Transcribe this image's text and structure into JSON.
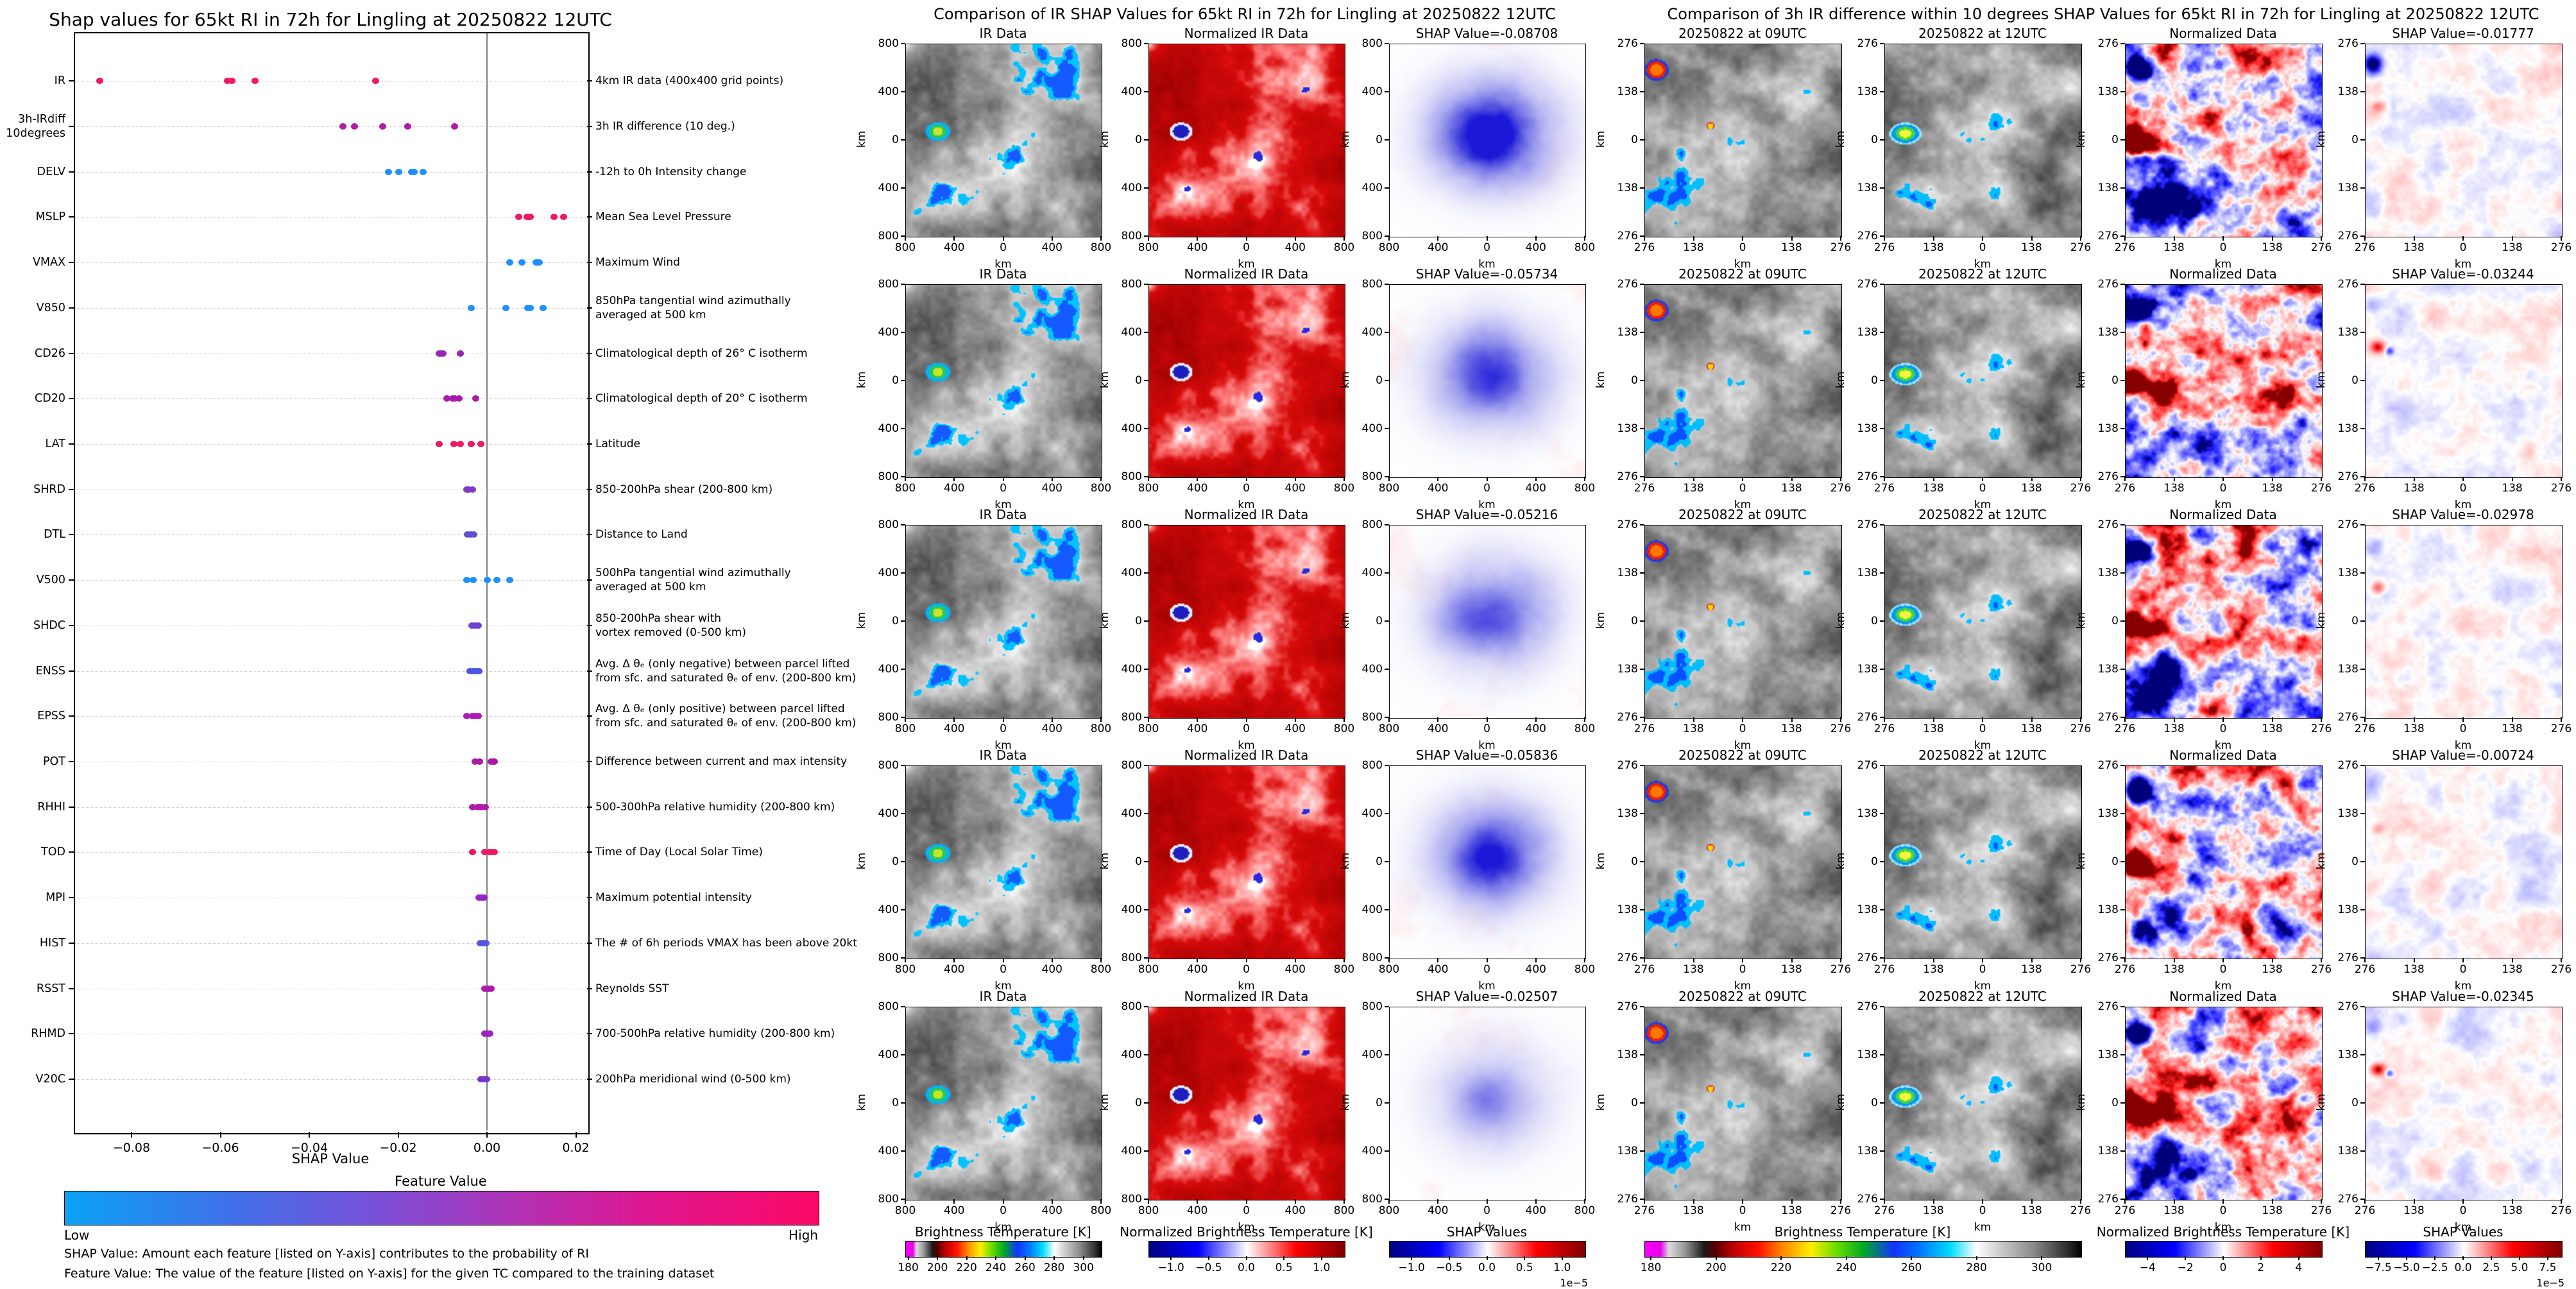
{
  "left_panel": {
    "title": "Shap values for 65kt RI in 72h for Lingling at 20250822 12UTC",
    "xlabel": "SHAP Value",
    "x_ticks": [
      {
        "v": -0.08,
        "label": "−0.08"
      },
      {
        "v": -0.06,
        "label": "−0.06"
      },
      {
        "v": -0.04,
        "label": "−0.04"
      },
      {
        "v": -0.02,
        "label": "−0.02"
      },
      {
        "v": 0.0,
        "label": "0.00"
      },
      {
        "v": 0.02,
        "label": "0.02"
      }
    ],
    "colorbar": {
      "title": "Feature Value",
      "low": "Low",
      "high": "High"
    },
    "footnotes": [
      "SHAP Value: Amount each feature [listed on Y-axis] contributes to the probability of RI",
      "Feature Value: The value of the feature [listed on Y-axis] for the given TC compared to the training dataset"
    ],
    "features": [
      {
        "name": "IR",
        "desc": "4km IR data (400x400 grid points)",
        "color": "#ee1866",
        "dots": [
          -0.08708,
          -0.05836,
          -0.05734,
          -0.05216,
          -0.02507
        ]
      },
      {
        "name": "3h-IRdiff\n10degrees",
        "desc": "3h IR difference (10 deg.)",
        "color": "#b21ba6",
        "dots": [
          -0.03244,
          -0.02978,
          -0.02345,
          -0.01777,
          -0.00724
        ]
      },
      {
        "name": "DELV",
        "desc": "-12h to 0h Intensity change",
        "color": "#1e90ff",
        "dots": [
          -0.0221,
          -0.0198,
          -0.017,
          -0.0164,
          -0.0144
        ]
      },
      {
        "name": "MSLP",
        "desc": "Mean Sea Level Pressure",
        "color": "#ee1866",
        "dots": [
          0.0071,
          0.009,
          0.0093,
          0.0098,
          0.0151,
          0.0172
        ]
      },
      {
        "name": "VMAX",
        "desc": "Maximum Wind",
        "color": "#1e90ff",
        "dots": [
          0.0051,
          0.0078,
          0.011,
          0.0114,
          0.0117
        ]
      },
      {
        "name": "V850",
        "desc": "850hPa tangential wind azimuthally\naveraged at 500 km",
        "color": "#1e90ff",
        "dots": [
          -0.0036,
          0.0043,
          0.0092,
          0.0097,
          0.0127
        ]
      },
      {
        "name": "CD26",
        "desc": "Climatological depth of 26° C isotherm",
        "color": "#9526b6",
        "dots": [
          -0.0107,
          -0.0103,
          -0.0099,
          -0.006
        ]
      },
      {
        "name": "CD20",
        "desc": "Climatological depth of 20° C isotherm",
        "color": "#a81bab",
        "dots": [
          -0.009,
          -0.0077,
          -0.0073,
          -0.0063,
          -0.0025
        ]
      },
      {
        "name": "LAT",
        "desc": "Latitude",
        "color": "#ee1866",
        "dots": [
          -0.0107,
          -0.0075,
          -0.006,
          -0.0035,
          -0.0013
        ]
      },
      {
        "name": "SHRD",
        "desc": "850-200hPa shear (200-800 km)",
        "color": "#7c3cc8",
        "dots": [
          -0.0046,
          -0.0041,
          -0.0033
        ]
      },
      {
        "name": "DTL",
        "desc": "Distance to Land",
        "color": "#5c50d4",
        "dots": [
          -0.0044,
          -0.0037,
          -0.003
        ]
      },
      {
        "name": "V500",
        "desc": "500hPa tangential wind azimuthally\naveraged at 500 km",
        "color": "#1e90ff",
        "dots": [
          -0.0045,
          -0.0031,
          0.0001,
          0.0022,
          0.0051
        ]
      },
      {
        "name": "SHDC",
        "desc": "850-200hPa shear with\nvortex removed (0-500 km)",
        "color": "#6d44d0",
        "dots": [
          -0.0034,
          -0.0027,
          -0.002
        ]
      },
      {
        "name": "ENSS",
        "desc": "Avg. Δ θₑ (only negative) between parcel lifted\nfrom sfc. and saturated θₑ of env. (200-800 km)",
        "color": "#4a55e4",
        "dots": [
          -0.0038,
          -0.0031,
          -0.0025,
          -0.0018
        ]
      },
      {
        "name": "EPSS",
        "desc": "Avg. Δ θₑ (only positive) between parcel lifted\nfrom sfc. and saturated θₑ of env. (200-800 km)",
        "color": "#b01ab6",
        "dots": [
          -0.0045,
          -0.0032,
          -0.0027,
          -0.0019
        ]
      },
      {
        "name": "POT",
        "desc": "Difference between current and max intensity",
        "color": "#ae17a4",
        "dots": [
          -0.0026,
          -0.0017,
          0.001,
          0.0014,
          0.0017
        ]
      },
      {
        "name": "RHHI",
        "desc": "500-300hPa relative humidity (200-800 km)",
        "color": "#b019a8",
        "dots": [
          -0.0032,
          -0.0021,
          -0.0017,
          -0.0012,
          -0.0003
        ]
      },
      {
        "name": "TOD",
        "desc": "Time of Day (Local Solar Time)",
        "color": "#ee1866",
        "dots": [
          -0.0032,
          -0.0005,
          0.0006,
          0.0011,
          0.0016
        ]
      },
      {
        "name": "MPI",
        "desc": "Maximum potential intensity",
        "color": "#9427c6",
        "dots": [
          -0.0018,
          -0.0012,
          -0.0006
        ]
      },
      {
        "name": "HIST",
        "desc": "The # of 6h periods VMAX has been above 20kt",
        "color": "#5556e0",
        "dots": [
          -0.0015,
          -0.0009,
          -0.0002
        ]
      },
      {
        "name": "RSST",
        "desc": "Reynolds SST",
        "color": "#ac18ac",
        "dots": [
          -0.0005,
          0.0002,
          0.0009
        ]
      },
      {
        "name": "RHMD",
        "desc": "700-500hPa relative humidity (200-800 km)",
        "color": "#9a23bc",
        "dots": [
          -0.0005,
          0.0001,
          0.0007
        ]
      },
      {
        "name": "V20C",
        "desc": "200hPa meridional wind (0-500 km)",
        "color": "#7b33d2",
        "dots": [
          -0.0013,
          -0.0007,
          -0.0001
        ]
      }
    ]
  },
  "middle_section": {
    "title": "Comparison of IR SHAP Values for 65kt RI in 72h for Lingling at 20250822 12UTC",
    "col_titles": [
      "IR Data",
      "Normalized IR Data"
    ],
    "shap_prefix": "SHAP Value=",
    "rows": [
      {
        "shap": "-0.08708"
      },
      {
        "shap": "-0.05734"
      },
      {
        "shap": "-0.05216"
      },
      {
        "shap": "-0.05836"
      },
      {
        "shap": "-0.02507"
      }
    ],
    "axis": {
      "y": [
        "800",
        "400",
        "0",
        "400",
        "800"
      ],
      "x": [
        "800",
        "400",
        "0",
        "400",
        "800"
      ],
      "unit": "km"
    },
    "colorbars": [
      {
        "title": "Brightness Temperature [K]",
        "ticks": [
          "180",
          "200",
          "220",
          "240",
          "260",
          "280",
          "300"
        ]
      },
      {
        "title": "Normalized Brightness Temperature [K]",
        "ticks": [
          "−1.0",
          "−0.5",
          "0.0",
          "0.5",
          "1.0"
        ]
      },
      {
        "title": "SHAP Values",
        "ticks": [
          "−1.0",
          "−0.5",
          "0.0",
          "0.5",
          "1.0"
        ],
        "exp": "1e−5"
      }
    ]
  },
  "right_section": {
    "title": "Comparison of 3h IR difference within 10 degrees SHAP Values for 65kt RI in 72h for Lingling at 20250822 12UTC",
    "col_titles": [
      "20250822 at 09UTC",
      "20250822 at 12UTC",
      "Normalized Data"
    ],
    "shap_prefix": "SHAP Value=",
    "rows": [
      {
        "shap": "-0.01777"
      },
      {
        "shap": "-0.03244"
      },
      {
        "shap": "-0.02978"
      },
      {
        "shap": "-0.00724"
      },
      {
        "shap": "-0.02345"
      }
    ],
    "axis": {
      "y": [
        "276",
        "138",
        "0",
        "138",
        "276"
      ],
      "x": [
        "276",
        "138",
        "0",
        "138",
        "276"
      ],
      "unit": "km"
    },
    "colorbars": [
      {
        "title": "Brightness Temperature [K]",
        "ticks": [
          "180",
          "200",
          "220",
          "240",
          "260",
          "280",
          "300"
        ]
      },
      {
        "title": "Normalized Brightness Temperature [K]",
        "ticks": [
          "−4",
          "−2",
          "0",
          "2",
          "4"
        ]
      },
      {
        "title": "SHAP Values",
        "ticks": [
          "−7.5",
          "−5.0",
          "−2.5",
          "0.0",
          "2.5",
          "5.0",
          "7.5"
        ],
        "exp": "1e−5"
      }
    ]
  },
  "chart_data": [
    {
      "type": "scatter",
      "title": "Shap values for 65kt RI in 72h for Lingling at 20250822 12UTC",
      "xlabel": "SHAP Value",
      "xlim": [
        -0.093,
        0.0225
      ],
      "x_ticks": [
        -0.08,
        -0.06,
        -0.04,
        -0.02,
        0.0,
        0.02
      ],
      "legend": "Feature Value colorbar: Low (blue) to High (pink)",
      "series": [
        {
          "name": "IR",
          "values": [
            -0.08708,
            -0.05836,
            -0.05734,
            -0.05216,
            -0.02507
          ]
        },
        {
          "name": "3h-IRdiff 10degrees",
          "values": [
            -0.03244,
            -0.02978,
            -0.02345,
            -0.01777,
            -0.00724
          ]
        },
        {
          "name": "DELV",
          "values": [
            -0.0221,
            -0.0198,
            -0.017,
            -0.0164,
            -0.0144
          ]
        },
        {
          "name": "MSLP",
          "values": [
            0.0071,
            0.009,
            0.0093,
            0.0098,
            0.0151,
            0.0172
          ]
        },
        {
          "name": "VMAX",
          "values": [
            0.0051,
            0.0078,
            0.011,
            0.0114,
            0.0117
          ]
        },
        {
          "name": "V850",
          "values": [
            -0.0036,
            0.0043,
            0.0092,
            0.0097,
            0.0127
          ]
        },
        {
          "name": "CD26",
          "values": [
            -0.0107,
            -0.0103,
            -0.0099,
            -0.006
          ]
        },
        {
          "name": "CD20",
          "values": [
            -0.009,
            -0.0077,
            -0.0073,
            -0.0063,
            -0.0025
          ]
        },
        {
          "name": "LAT",
          "values": [
            -0.0107,
            -0.0075,
            -0.006,
            -0.0035,
            -0.0013
          ]
        },
        {
          "name": "SHRD",
          "values": [
            -0.0046,
            -0.0041,
            -0.0033
          ]
        },
        {
          "name": "DTL",
          "values": [
            -0.0044,
            -0.0037,
            -0.003
          ]
        },
        {
          "name": "V500",
          "values": [
            -0.0045,
            -0.0031,
            0.0001,
            0.0022,
            0.0051
          ]
        },
        {
          "name": "SHDC",
          "values": [
            -0.0034,
            -0.0027,
            -0.002
          ]
        },
        {
          "name": "ENSS",
          "values": [
            -0.0038,
            -0.0031,
            -0.0025,
            -0.0018
          ]
        },
        {
          "name": "EPSS",
          "values": [
            -0.0045,
            -0.0032,
            -0.0027,
            -0.0019
          ]
        },
        {
          "name": "POT",
          "values": [
            -0.0026,
            -0.0017,
            0.001,
            0.0014,
            0.0017
          ]
        },
        {
          "name": "RHHI",
          "values": [
            -0.0032,
            -0.0021,
            -0.0017,
            -0.0012,
            -0.0003
          ]
        },
        {
          "name": "TOD",
          "values": [
            -0.0032,
            -0.0005,
            0.0006,
            0.0011,
            0.0016
          ]
        },
        {
          "name": "MPI",
          "values": [
            -0.0018,
            -0.0012,
            -0.0006
          ]
        },
        {
          "name": "HIST",
          "values": [
            -0.0015,
            -0.0009,
            -0.0002
          ]
        },
        {
          "name": "RSST",
          "values": [
            -0.0005,
            0.0002,
            0.0009
          ]
        },
        {
          "name": "RHMD",
          "values": [
            -0.0005,
            0.0001,
            0.0007
          ]
        },
        {
          "name": "V20C",
          "values": [
            -0.0013,
            -0.0007,
            -0.0001
          ]
        }
      ]
    },
    {
      "type": "heatmap",
      "title": "Comparison of IR SHAP Values for 65kt RI in 72h for Lingling at 20250822 12UTC",
      "columns": [
        "IR Data",
        "Normalized IR Data",
        "SHAP Value map"
      ],
      "row_shap_values": [
        -0.08708,
        -0.05734,
        -0.05216,
        -0.05836,
        -0.02507
      ],
      "axis_km_range": [
        -800,
        800
      ],
      "colorbars": [
        {
          "title": "Brightness Temperature [K]",
          "ticks": [
            180,
            200,
            220,
            240,
            260,
            280,
            300
          ]
        },
        {
          "title": "Normalized Brightness Temperature [K]",
          "ticks": [
            -1.0,
            -0.5,
            0.0,
            0.5,
            1.0
          ]
        },
        {
          "title": "SHAP Values",
          "ticks": [
            -1.0,
            -0.5,
            0.0,
            0.5,
            1.0
          ],
          "scale": "1e-5"
        }
      ]
    },
    {
      "type": "heatmap",
      "title": "Comparison of 3h IR difference within 10 degrees SHAP Values for 65kt RI in 72h for Lingling at 20250822 12UTC",
      "columns": [
        "20250822 at 09UTC",
        "20250822 at 12UTC",
        "Normalized Data",
        "SHAP Value map"
      ],
      "row_shap_values": [
        -0.01777,
        -0.03244,
        -0.02978,
        -0.00724,
        -0.02345
      ],
      "axis_km_range": [
        -276,
        276
      ],
      "colorbars": [
        {
          "title": "Brightness Temperature [K]",
          "ticks": [
            180,
            200,
            220,
            240,
            260,
            280,
            300
          ]
        },
        {
          "title": "Normalized Brightness Temperature [K]",
          "ticks": [
            -4,
            -2,
            0,
            2,
            4
          ]
        },
        {
          "title": "SHAP Values",
          "ticks": [
            -7.5,
            -5.0,
            -2.5,
            0.0,
            2.5,
            5.0,
            7.5
          ],
          "scale": "1e-5"
        }
      ]
    }
  ]
}
